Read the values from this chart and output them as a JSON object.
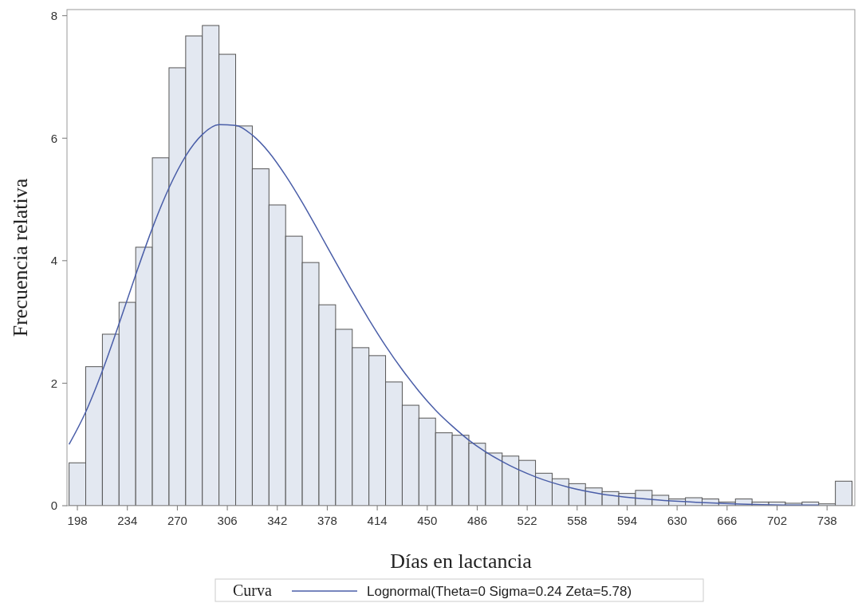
{
  "chart_data": {
    "type": "histogram",
    "xlabel": "Días en lactancia",
    "ylabel": "Frecuencia relativa",
    "legend_title": "Curva",
    "legend": "bottom",
    "bins": [
      192,
      204,
      216,
      228,
      240,
      252,
      264,
      276,
      288,
      300,
      312,
      324,
      336,
      348,
      360,
      372,
      384,
      396,
      408,
      420,
      432,
      444,
      456,
      468,
      480,
      492,
      504,
      516,
      528,
      540,
      552,
      564,
      576,
      588,
      600,
      612,
      624,
      636,
      648,
      660,
      672,
      684,
      696,
      708,
      720,
      732,
      744,
      756
    ],
    "xlim": [
      190.5,
      758
    ],
    "xticks": [
      198,
      234,
      270,
      306,
      342,
      378,
      414,
      450,
      486,
      522,
      558,
      594,
      630,
      666,
      702,
      738
    ],
    "ylim": [
      0,
      8.1
    ],
    "yticks": [
      0,
      2,
      4,
      6,
      8
    ],
    "series": [
      {
        "color": "#e3e8f1",
        "values": [
          0.7,
          2.27,
          2.8,
          3.32,
          4.22,
          5.68,
          7.15,
          7.67,
          7.84,
          7.37,
          6.2,
          5.5,
          4.91,
          4.4,
          3.97,
          3.28,
          2.88,
          2.58,
          2.45,
          2.02,
          1.64,
          1.43,
          1.19,
          1.15,
          1.02,
          0.86,
          0.81,
          0.74,
          0.53,
          0.44,
          0.36,
          0.29,
          0.23,
          0.2,
          0.25,
          0.17,
          0.11,
          0.13,
          0.11,
          0.06,
          0.11,
          0.06,
          0.06,
          0.04,
          0.06,
          0.03,
          0.4
        ]
      },
      {
        "type": "line",
        "name": "Lognormal(Theta=0 Sigma=0.24 Zeta=5.78)",
        "color": "#4a5ea8",
        "x": [
          192,
          204,
          216,
          228,
          240,
          252,
          264,
          276,
          288,
          300,
          312,
          324,
          336,
          348,
          360,
          372,
          384,
          396,
          408,
          420,
          432,
          444,
          456,
          468,
          480,
          504,
          528,
          552,
          576,
          612,
          660,
          720,
          732
        ],
        "values": [
          1.0,
          1.53,
          2.2,
          2.97,
          3.77,
          4.53,
          5.19,
          5.71,
          6.06,
          6.22,
          6.21,
          6.05,
          5.77,
          5.39,
          4.95,
          4.47,
          3.98,
          3.5,
          3.04,
          2.61,
          2.22,
          1.87,
          1.56,
          1.3,
          1.07,
          0.72,
          0.47,
          0.3,
          0.19,
          0.1,
          0.04,
          0.01,
          0.01
        ]
      }
    ]
  }
}
